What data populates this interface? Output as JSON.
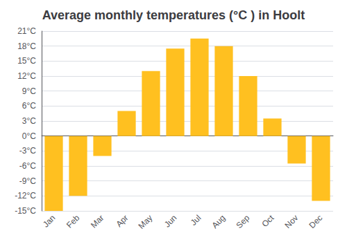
{
  "chart_data": {
    "type": "bar",
    "title": "Average monthly temperatures (°C ) in Hoolt",
    "categories": [
      "Jan",
      "Feb",
      "Mar",
      "Apr",
      "May",
      "Jun",
      "Jul",
      "Aug",
      "Sep",
      "Oct",
      "Nov",
      "Dec"
    ],
    "values": [
      -15,
      -12,
      -4,
      5,
      13,
      17.5,
      19.5,
      18,
      12,
      3.5,
      -5.5,
      -13
    ],
    "color": "#FFC020",
    "ylim": [
      -15,
      21
    ],
    "yticks": [
      {
        "value": -15,
        "label": "-15°C"
      },
      {
        "value": -12,
        "label": "-12°C"
      },
      {
        "value": -9,
        "label": "-9°C"
      },
      {
        "value": -6,
        "label": "-6°C"
      },
      {
        "value": -3,
        "label": "-3°C"
      },
      {
        "value": 0,
        "label": "0°C"
      },
      {
        "value": 3,
        "label": "3°C"
      },
      {
        "value": 6,
        "label": "6°C"
      },
      {
        "value": 9,
        "label": "9°C"
      },
      {
        "value": 12,
        "label": "12°C"
      },
      {
        "value": 15,
        "label": "15°C"
      },
      {
        "value": 18,
        "label": "18°C"
      },
      {
        "value": 21,
        "label": "21°C"
      }
    ],
    "grid": true
  }
}
